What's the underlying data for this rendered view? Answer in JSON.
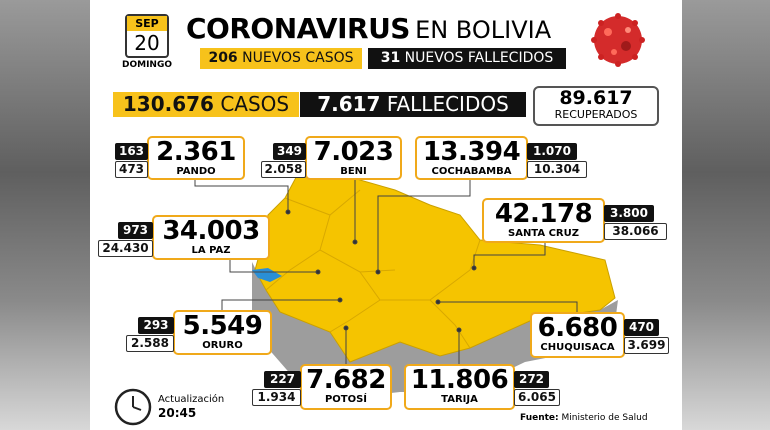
{
  "header": {
    "date": {
      "month": "SEP",
      "day": "20",
      "weekday": "DOMINGO"
    },
    "title": "CORONAVIRUS",
    "title_suffix": "EN BOLIVIA",
    "new_cases": {
      "value": "206",
      "label": "NUEVOS CASOS"
    },
    "new_deaths": {
      "value": "31",
      "label": "NUEVOS FALLECIDOS"
    }
  },
  "totals": {
    "cases": {
      "value": "130.676",
      "label": "CASOS"
    },
    "deaths": {
      "value": "7.617",
      "label": "FALLECIDOS"
    },
    "recovered": {
      "value": "89.617",
      "label": "RECUPERADOS"
    }
  },
  "departments": [
    {
      "name": "PANDO",
      "cases": "2.361",
      "deaths": "163",
      "recovered": "473"
    },
    {
      "name": "BENI",
      "cases": "7.023",
      "deaths": "349",
      "recovered": "2.058"
    },
    {
      "name": "COCHABAMBA",
      "cases": "13.394",
      "deaths": "1.070",
      "recovered": "10.304"
    },
    {
      "name": "SANTA CRUZ",
      "cases": "42.178",
      "deaths": "3.800",
      "recovered": "38.066"
    },
    {
      "name": "LA PAZ",
      "cases": "34.003",
      "deaths": "973",
      "recovered": "24.430"
    },
    {
      "name": "ORURO",
      "cases": "5.549",
      "deaths": "293",
      "recovered": "2.588"
    },
    {
      "name": "CHUQUISACA",
      "cases": "6.680",
      "deaths": "470",
      "recovered": "3.699"
    },
    {
      "name": "POTOSÍ",
      "cases": "7.682",
      "deaths": "227",
      "recovered": "1.934"
    },
    {
      "name": "TARIJA",
      "cases": "11.806",
      "deaths": "272",
      "recovered": "6.065"
    }
  ],
  "footer": {
    "update_label": "Actualización",
    "update_time": "20:45",
    "source_label": "Fuente:",
    "source": "Ministerio de Salud"
  }
}
